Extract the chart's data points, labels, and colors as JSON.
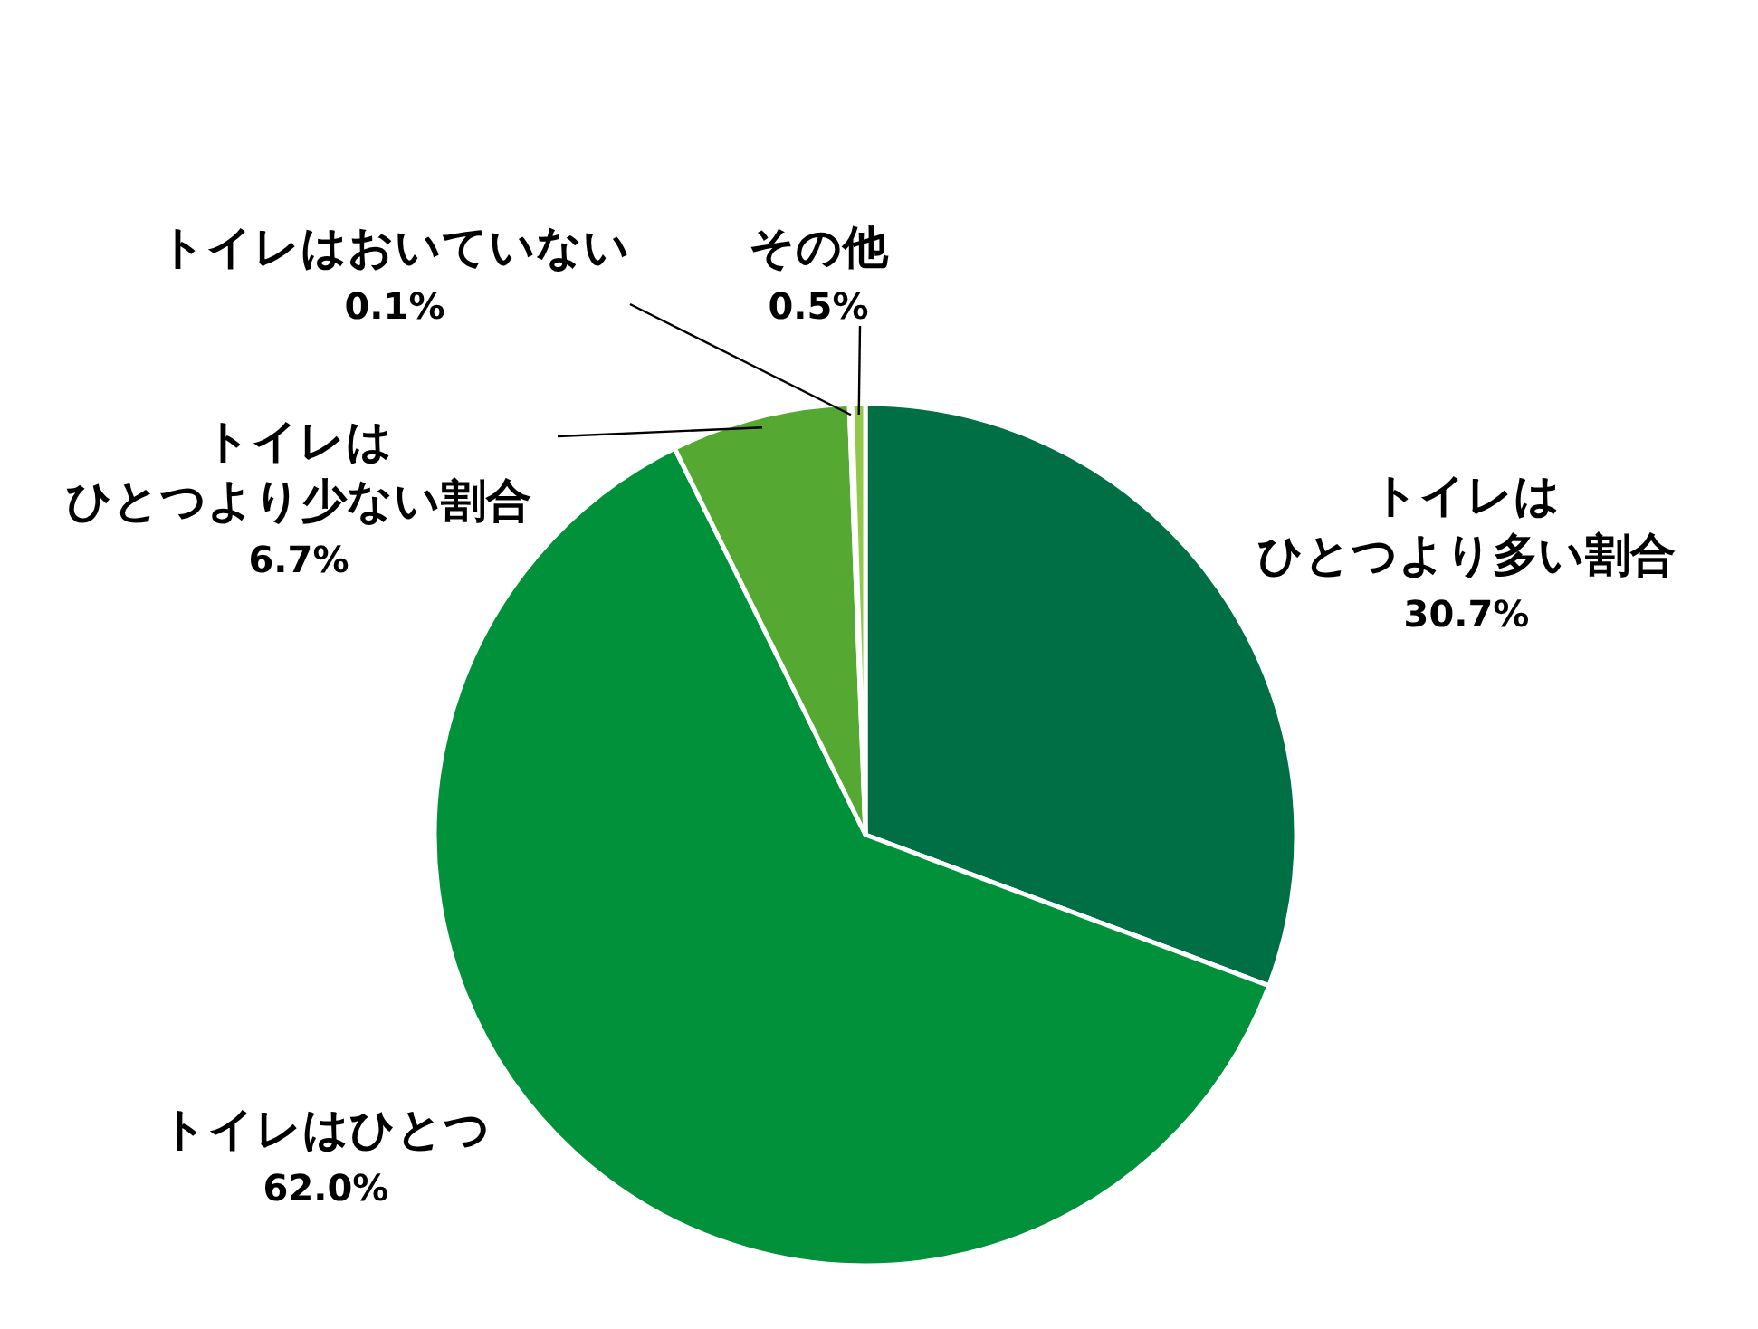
{
  "chart_data": {
    "type": "pie",
    "categories": [
      "トイレはひとつより多い割合",
      "トイレはひとつ",
      "トイレはひとつより少ない割合",
      "トイレはおいていない",
      "その他"
    ],
    "values": [
      30.7,
      62.0,
      6.7,
      0.1,
      0.5
    ],
    "value_labels": [
      "30.7%",
      "62.0%",
      "6.7%",
      "0.1%",
      "0.5%"
    ],
    "colors": [
      "#006f45",
      "#00913a",
      "#55a832",
      "#c5e0b4",
      "#92c94a"
    ]
  }
}
